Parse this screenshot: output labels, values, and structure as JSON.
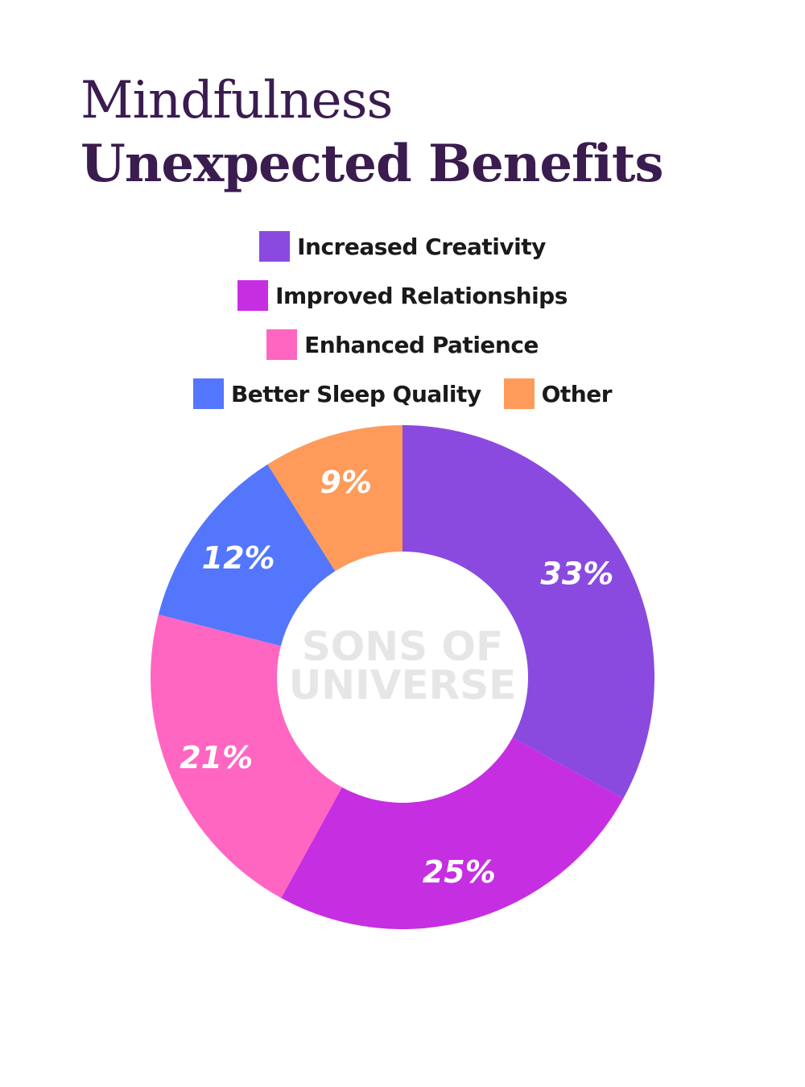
{
  "title": {
    "line1": "Mindfulness",
    "line2": "Unexpected Benefits"
  },
  "watermark": {
    "line1": "SONS OF",
    "line2": "UNIVERSE"
  },
  "chart_data": {
    "type": "pie",
    "donut": true,
    "title": "Mindfulness Unexpected Benefits",
    "legend_position": "top-center",
    "slices": [
      {
        "label": "Increased Creativity",
        "value": 33,
        "display": "33%",
        "color": "#8a4ae0"
      },
      {
        "label": "Improved Relationships",
        "value": 25,
        "display": "25%",
        "color": "#c62ee2"
      },
      {
        "label": "Enhanced Patience",
        "value": 21,
        "display": "21%",
        "color": "#ff66c2"
      },
      {
        "label": "Better Sleep Quality",
        "value": 12,
        "display": "12%",
        "color": "#5376fc"
      },
      {
        "label": "Other",
        "value": 9,
        "display": "9%",
        "color": "#ff9b5a"
      }
    ]
  }
}
